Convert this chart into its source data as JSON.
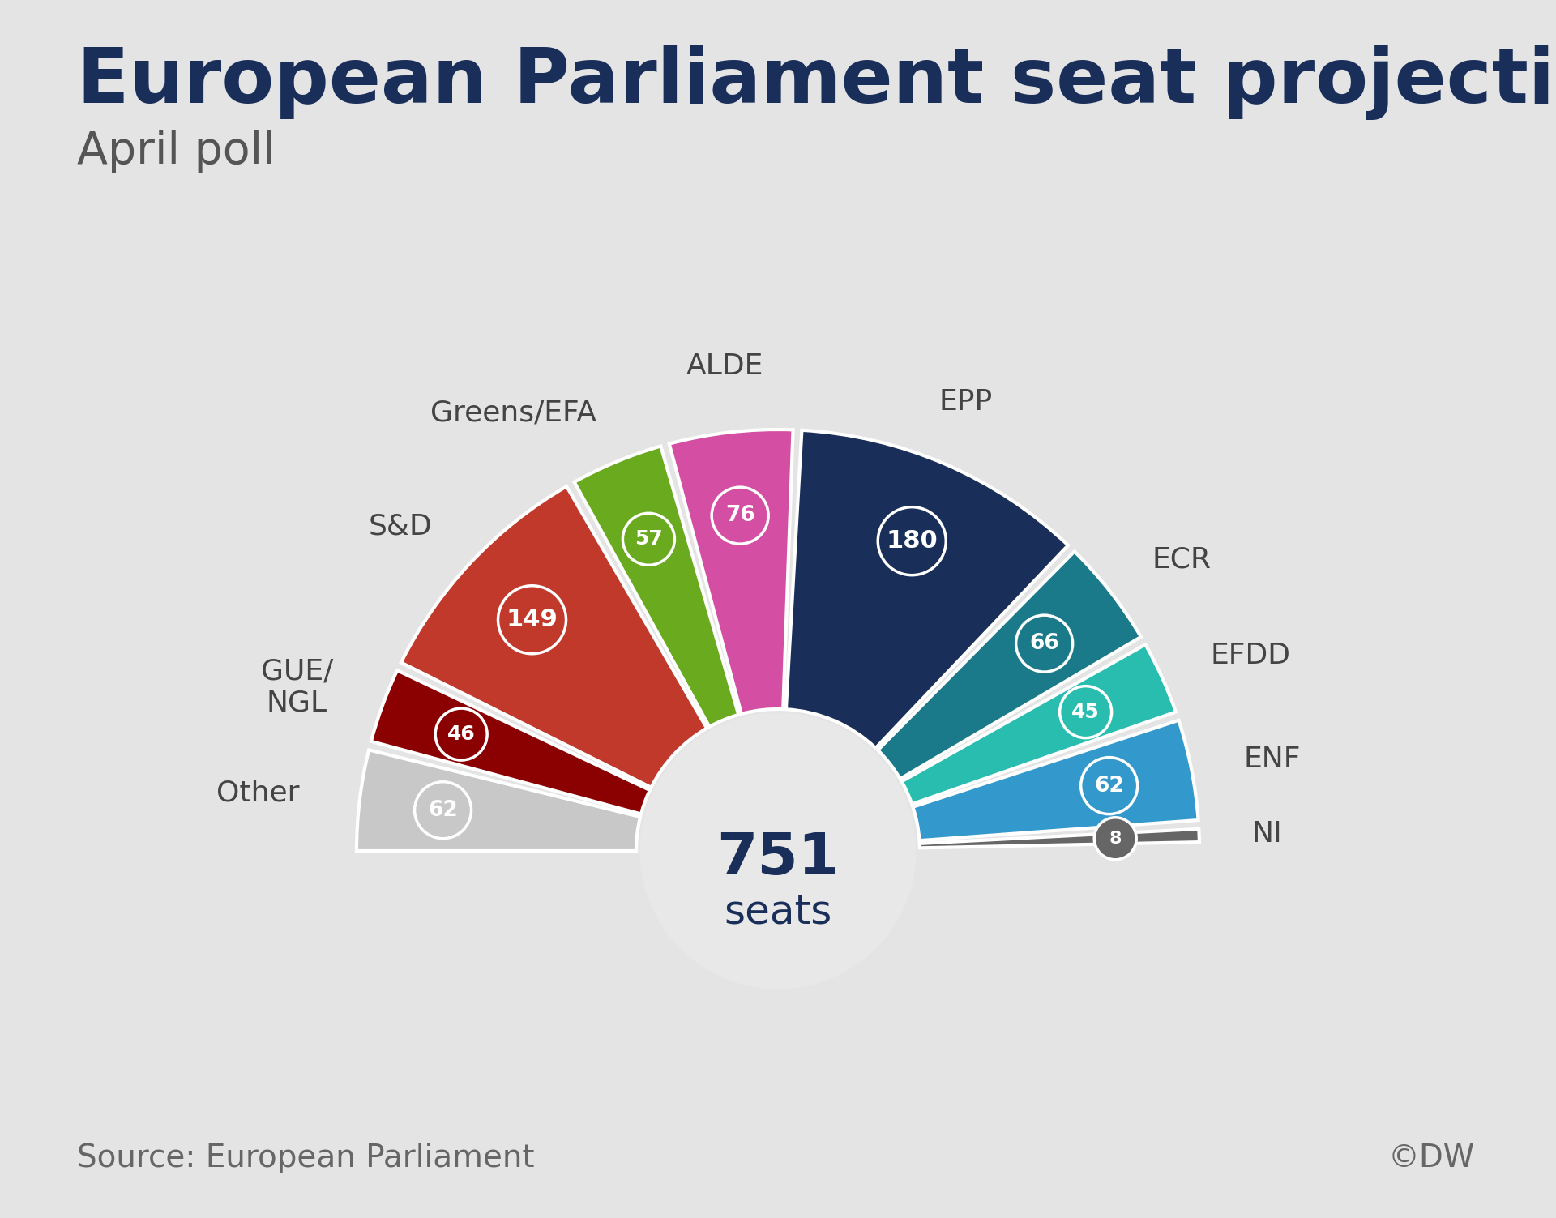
{
  "title": "European Parliament seat projection",
  "subtitle": "April poll",
  "total_seats": 751,
  "total_label": "seats",
  "source": "Source: European Parliament",
  "copyright": "©DW",
  "background_color": "#e4e4e4",
  "title_color": "#1a2e5a",
  "subtitle_color": "#555555",
  "text_color": "#444444",
  "parties": [
    {
      "name": "Other",
      "seats": 62,
      "color": "#c8c8c8",
      "label_color": "#666666",
      "text_side": "left",
      "label_angle_override": null
    },
    {
      "name": "GUE/\nNGL",
      "seats": 46,
      "color": "#8b0000",
      "label_color": "#ffffff",
      "text_side": "left",
      "label_angle_override": null
    },
    {
      "name": "S&D",
      "seats": 149,
      "color": "#c0392b",
      "label_color": "#ffffff",
      "text_side": "left",
      "label_angle_override": null
    },
    {
      "name": "Greens/EFA",
      "seats": 57,
      "color": "#6aaa1e",
      "label_color": "#ffffff",
      "text_side": "left",
      "label_angle_override": null
    },
    {
      "name": "ALDE",
      "seats": 76,
      "color": "#d44fa3",
      "label_color": "#ffffff",
      "text_side": "top",
      "label_angle_override": null
    },
    {
      "name": "EPP",
      "seats": 180,
      "color": "#1a2e5a",
      "label_color": "#ffffff",
      "text_side": "right",
      "label_angle_override": null
    },
    {
      "name": "ECR",
      "seats": 66,
      "color": "#1a7a8a",
      "label_color": "#ffffff",
      "text_side": "right",
      "label_angle_override": null
    },
    {
      "name": "EFDD",
      "seats": 45,
      "color": "#29bdb0",
      "label_color": "#ffffff",
      "text_side": "right",
      "label_angle_override": null
    },
    {
      "name": "ENF",
      "seats": 62,
      "color": "#3399cc",
      "label_color": "#ffffff",
      "text_side": "right",
      "label_angle_override": null
    },
    {
      "name": "NI",
      "seats": 8,
      "color": "#666666",
      "label_color": "#ffffff",
      "text_side": "right",
      "label_angle_override": null
    }
  ]
}
